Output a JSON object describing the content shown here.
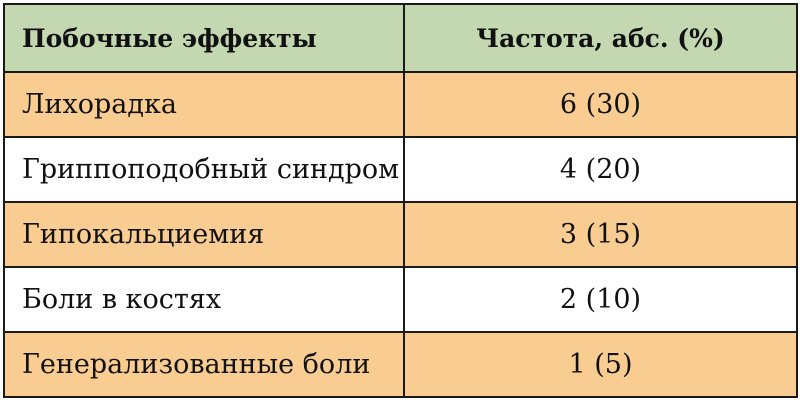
{
  "colors": {
    "header_bg": "#c3d7b1",
    "shaded_row_bg": "#f9cd91",
    "plain_row_bg": "#ffffff",
    "border": "#1a1a1a"
  },
  "table": {
    "headers": {
      "effect": "Побочные эффекты",
      "frequency": "Частота, абс. (%)"
    },
    "rows": [
      {
        "effect": "Лихорадка",
        "frequency": "6 (30)",
        "shaded": true
      },
      {
        "effect": "Гриппоподобный синдром",
        "frequency": "4 (20)",
        "shaded": false
      },
      {
        "effect": "Гипокальциемия",
        "frequency": "3 (15)",
        "shaded": true
      },
      {
        "effect": "Боли в костях",
        "frequency": "2 (10)",
        "shaded": false
      },
      {
        "effect": "Генерализованные боли",
        "frequency": "1 (5)",
        "shaded": true
      }
    ]
  }
}
